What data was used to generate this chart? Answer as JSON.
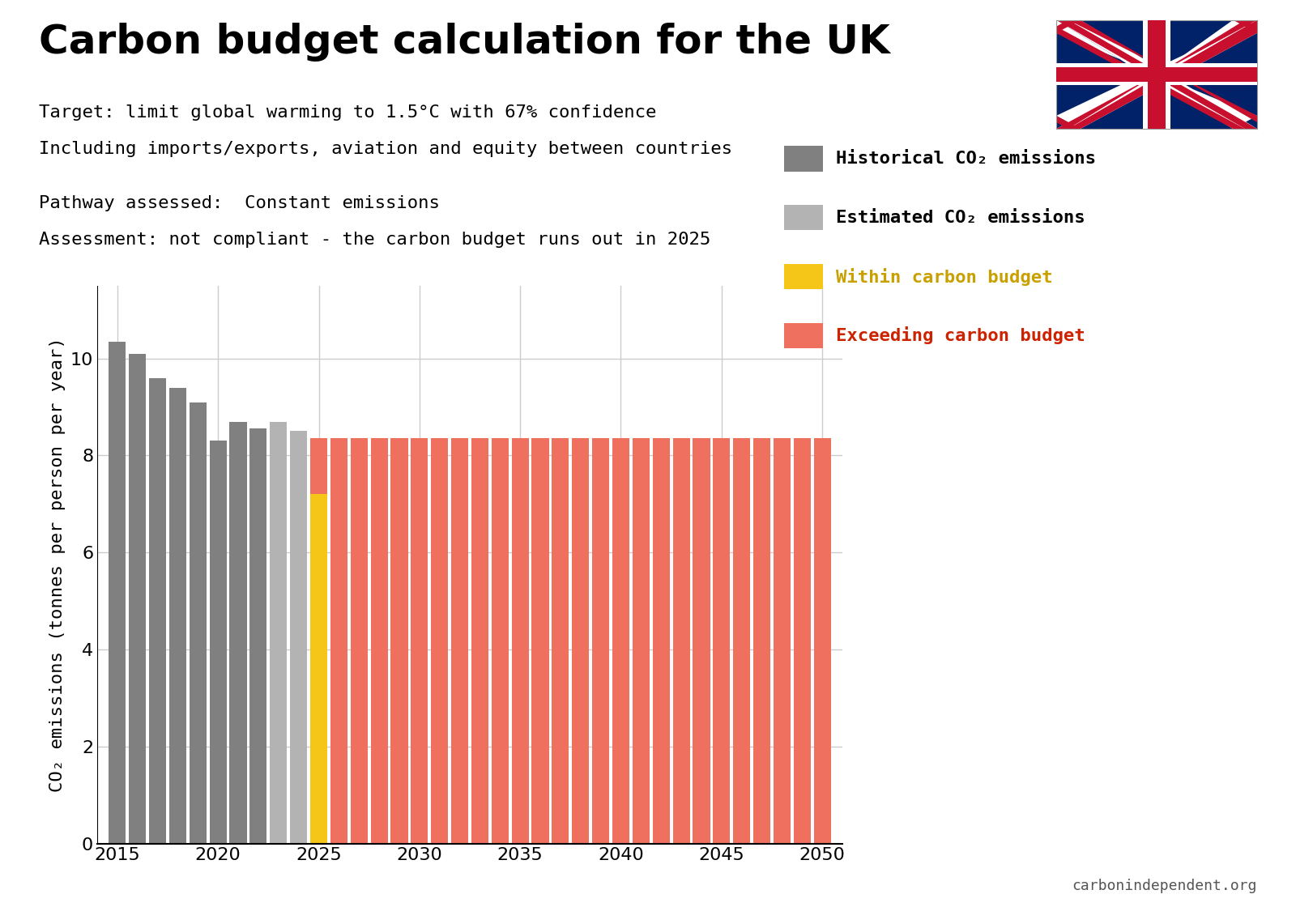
{
  "title": "Carbon budget calculation for the UK",
  "subtitle1": "Target: limit global warming to 1.5°C with 67% confidence",
  "subtitle2": "Including imports/exports, aviation and equity between countries",
  "pathway": "Pathway assessed:  Constant emissions",
  "assessment": "Assessment: not compliant - the carbon budget runs out in 2025",
  "ylabel": "CO₂ emissions (tonnes per person per year)",
  "watermark": "carbonindependent.org",
  "years_historical": [
    2015,
    2016,
    2017,
    2018,
    2019,
    2020,
    2021,
    2022
  ],
  "values_historical": [
    10.35,
    10.1,
    9.6,
    9.4,
    9.1,
    8.3,
    8.7,
    8.55
  ],
  "years_estimated": [
    2023,
    2024
  ],
  "values_estimated": [
    8.7,
    8.5
  ],
  "year_transition": 2025,
  "value_within_budget": 7.2,
  "value_total_2025": 8.35,
  "years_exceeding": [
    2026,
    2027,
    2028,
    2029,
    2030,
    2031,
    2032,
    2033,
    2034,
    2035,
    2036,
    2037,
    2038,
    2039,
    2040,
    2041,
    2042,
    2043,
    2044,
    2045,
    2046,
    2047,
    2048,
    2049,
    2050
  ],
  "value_exceeding": 8.35,
  "color_historical": "#808080",
  "color_estimated": "#b3b3b3",
  "color_within": "#f5c518",
  "color_exceeding": "#f07060",
  "background_color": "#ffffff",
  "ylim_max": 11.5,
  "yticks": [
    0,
    2,
    4,
    6,
    8,
    10
  ],
  "xticks": [
    2015,
    2020,
    2025,
    2030,
    2035,
    2040,
    2045,
    2050
  ],
  "grid_color": "#cccccc",
  "title_fontsize": 36,
  "subtitle_fontsize": 16,
  "pathway_fontsize": 16,
  "label_fontsize": 16,
  "tick_fontsize": 16,
  "legend_fontsize": 16,
  "bar_width": 0.85,
  "legend_items": [
    {
      "color": "#808080",
      "label": "Historical CO₂ emissions",
      "text_color": "#000000"
    },
    {
      "color": "#b3b3b3",
      "label": "Estimated CO₂ emissions",
      "text_color": "#000000"
    },
    {
      "color": "#f5c518",
      "label": "Within carbon budget",
      "text_color": "#c8a000"
    },
    {
      "color": "#f07060",
      "label": "Exceeding carbon budget",
      "text_color": "#cc2200"
    }
  ]
}
